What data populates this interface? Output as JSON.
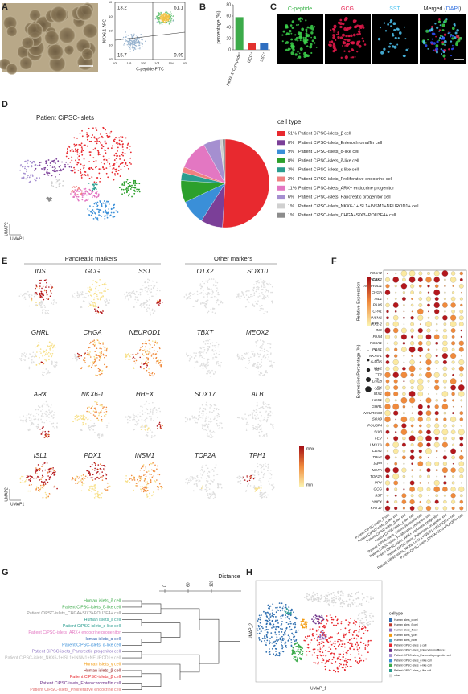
{
  "panel_labels": [
    "A",
    "B",
    "C",
    "D",
    "E",
    "F",
    "G",
    "H"
  ],
  "a": {
    "x_label": "C-peptide-FITC",
    "y_label": "NKX6.1-APC",
    "quadrants": [
      13.2,
      61.1,
      15.7,
      9.99
    ],
    "x_ticks": [
      "10⁰",
      "10¹",
      "10²",
      "10³",
      "10⁴",
      "10⁵"
    ],
    "y_ticks": [
      "10⁰",
      "10¹",
      "10²",
      "10³",
      "10⁴"
    ]
  },
  "chart_data": [
    {
      "type": "bar",
      "ylabel": "percentage (%)",
      "categories": [
        "NKX6.1⁺C-peptide⁺",
        "GCG⁺",
        "SST⁺"
      ],
      "values": [
        58,
        12,
        12
      ],
      "colors": [
        "#3cab4a",
        "#e2312f",
        "#2f6fc0"
      ],
      "ylim": [
        0,
        80
      ],
      "yticks": [
        0,
        20,
        40,
        60,
        80
      ]
    },
    {
      "type": "pie",
      "legend_title": "cell type",
      "categories": [
        "Patient CiPSC-islets_β cell",
        "Patient CiPSC-islets_Enterochromaffin cell",
        "Patient CiPSC-islets_α-like cell",
        "Patient CiPSC-islets_δ-like cell",
        "Patient CiPSC-islets_ε-like cell",
        "Patient CiPSC-islets_Proliferative endocrine cell",
        "Patient CiPSC-islets_ARX+ endocrine progenitor",
        "Patient CiPSC-islets_Pancreatic progenitor cell",
        "Patient CiPSC-islets_NKX6-1+ISL1+INSM1+NEUROD1+ cell",
        "Patient CiPSC-islets_CHGA+SIX3+POU3F4+ cell"
      ],
      "values": [
        51,
        8,
        9,
        8,
        3,
        2,
        11,
        6,
        1,
        1
      ],
      "value_labels": [
        "51%",
        "8%",
        "9%",
        "8%",
        "3%",
        "2%",
        "11%",
        "6%",
        "1%",
        "1%"
      ],
      "colors": [
        "#e8292f",
        "#7b3f98",
        "#3a8fd8",
        "#2ca02c",
        "#2a9d8f",
        "#f08080",
        "#e377c2",
        "#a58fd0",
        "#d0d0d0",
        "#8c8c8c"
      ]
    }
  ],
  "c": {
    "titles": [
      "C-peptide",
      "GCG",
      "SST"
    ],
    "title_colors": [
      "#3cb44b",
      "#e6194b",
      "#4ec3f0"
    ],
    "merged": [
      "Merged (",
      "DAPI",
      ")"
    ]
  },
  "d": {
    "title": "Patient CiPSC-islets",
    "x_label": "UMAP1",
    "y_label": "UMAP2"
  },
  "e": {
    "headings": [
      "Pancreatic markers",
      "Other markers"
    ],
    "genes": [
      "INS",
      "GCG",
      "SST",
      "OTX2",
      "SOX10",
      "GHRL",
      "CHGA",
      "NEUROD1",
      "TBXT",
      "MEOX2",
      "ARX",
      "NKX6-1",
      "HHEX",
      "SOX17",
      "ALB",
      "ISL1",
      "PDX1",
      "INSM1",
      "TOP2A",
      "TPH1"
    ],
    "scale": [
      "max",
      "min"
    ],
    "x_label": "UMAP1",
    "y_label": "UMAP2"
  },
  "f": {
    "genes": [
      "FOXA2",
      "PCSK2",
      "NEUROD1",
      "CHGA",
      "ISL1",
      "PAX6",
      "CPA1",
      "INSM1",
      "NKX2-2",
      "INS",
      "PAX4",
      "PCSK1",
      "PDX1",
      "NKX6-1",
      "GATA6",
      "IRX2",
      "TTR",
      "LIN28",
      "ARX",
      "IRX1",
      "HES1",
      "GHRL",
      "NEUROG3",
      "SOX9",
      "POU3F4",
      "SIX3",
      "FEV",
      "LMX1A",
      "CDX2",
      "TPH1",
      "IAPP",
      "MAFA",
      "TOP2A",
      "PPY",
      "GCG",
      "SST",
      "HHEX",
      "KRT17"
    ],
    "columns": [
      "Patient CiPSC-islets_β cell",
      "Patient CiPSC-islets_α-like cell",
      "Patient CiPSC-islets_δ-like cell",
      "Patient CiPSC-islets_ε-like cell",
      "Patient CiPSC-islets_Enterochromaffin cell",
      "Patient CiPSC-islets_Proliferative endocrine cell",
      "Patient CiPSC-islets_ARX+ endocrine progenitor",
      "Patient CiPSC-islets_Pancreatic progenitor cell",
      "Patient CiPSC-islets_NKX6-1+ISL1+INSM1+NEUROD1+ cell",
      "Patient CiPSC-islets_CHGA+SIX3+POU3F4+ cell"
    ],
    "color_title": "Relative Expression",
    "color_scale": [
      "max",
      "min"
    ],
    "size_title": "Expression Percentage (%)",
    "size_ticks": [
      0,
      25,
      50,
      75,
      100
    ]
  },
  "g": {
    "axis_title": "Distance",
    "ticks": [
      0,
      60,
      120
    ],
    "leaves": [
      "Human islets_δ cell",
      "Patient CiPSC-islets_δ-like cell",
      "Patient CiPSC-islets_CHGA+SIX3+POU3F4+ cell",
      "Human islets_ε cell",
      "Patient CiPSC-islets_ε-like cell",
      "Patient CiPSC-islets_ARX+ endocrine progenitor",
      "Human islets_α cell",
      "Patient CiPSC-islets_α-like cell",
      "Patient CiPSC-islets_Pancreatic progenitor cell",
      "Patient CiPSC-islets_NKX6-1+ISL1+INSM1+NEUROD1+ cell",
      "Human islets_γ cell",
      "Human islets_β cell",
      "Patient CiPSC-islets_β cell",
      "Patient CiPSC-islets_Enterochromaffin cell",
      "Patient CiPSC-islets_Proliferative endocrine cell"
    ],
    "colors": [
      "#3cab4a",
      "#3cab4a",
      "#8c8c8c",
      "#2a9d8f",
      "#2a9d8f",
      "#e377c2",
      "#2f5fb0",
      "#3a8fd8",
      "#8a6fc0",
      "#b5b5b5",
      "#f39c12",
      "#8b1a1a",
      "#e8292f",
      "#6b2f88",
      "#e07070"
    ]
  },
  "h": {
    "legend_title": "celltype",
    "x_label": "UMAP_1",
    "y_label": "UMAP_2",
    "categories": [
      "Human islets_α cell",
      "Human islets_β cell",
      "Human islets_δ cell",
      "Human islets_γ cell",
      "Human islets_ε cell",
      "Patient CiPSC-islets_β cell",
      "Patient CiPSC-islets_Enterochromaffin cell",
      "Patient CiPSC-islets_Pancreatic progenitor cell",
      "Patient CiPSC-islets_α-like cell",
      "Patient CiPSC-islets_δ-like cell",
      "Patient CiPSC-islets_ε-like cell",
      "other"
    ],
    "colors": [
      "#2f6fb0",
      "#c0392b",
      "#8e6fc0",
      "#f39c12",
      "#4aa3c8",
      "#e8292f",
      "#6b2f88",
      "#a58fd0",
      "#3a8fd8",
      "#3cab4a",
      "#2a9d8f",
      "#d9d9d9"
    ]
  }
}
